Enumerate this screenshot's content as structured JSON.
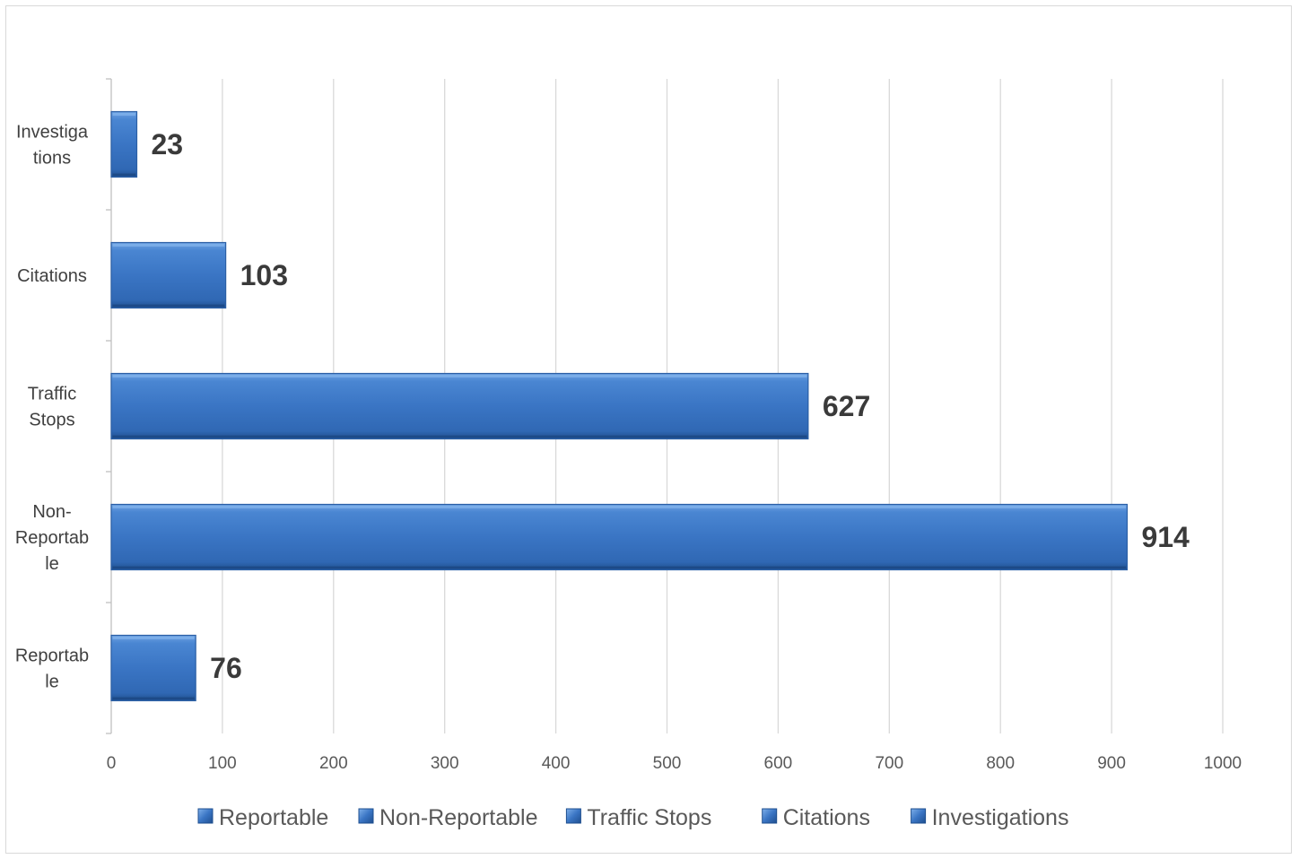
{
  "chart_data": {
    "type": "bar",
    "orientation": "horizontal",
    "categories": [
      "Reportable",
      "Non-Reportable",
      "Traffic Stops",
      "Citations",
      "Investigations"
    ],
    "axis_category_labels": [
      [
        "Reportab",
        "le"
      ],
      [
        "Non-",
        "Reportab",
        "le"
      ],
      [
        "Traffic",
        "Stops"
      ],
      [
        "Citations"
      ],
      [
        "Investiga",
        "tions"
      ]
    ],
    "values": [
      76,
      914,
      627,
      103,
      23
    ],
    "data_labels": [
      "76",
      "914",
      "627",
      "103",
      "23"
    ],
    "xlim": [
      0,
      1000
    ],
    "x_ticks": [
      "0",
      "100",
      "200",
      "300",
      "400",
      "500",
      "600",
      "700",
      "800",
      "900",
      "1000"
    ],
    "grid": "vertical",
    "legend": {
      "placement": "bottom",
      "entries": [
        "Reportable",
        "Non-Reportable",
        "Traffic Stops",
        "Citations",
        "Investigations"
      ]
    },
    "bar_color": "#3a75c4",
    "title": "",
    "xlabel": "",
    "ylabel": ""
  }
}
